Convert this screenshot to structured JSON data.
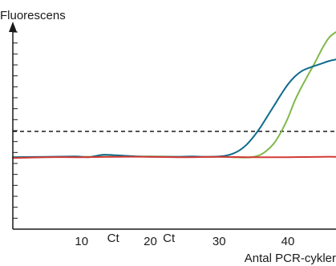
{
  "chart_data": {
    "type": "line",
    "ylabel": "Fluorescens",
    "xlabel": "Antal PCR-cykler",
    "xlim": [
      0,
      47
    ],
    "ylim": [
      -9.2,
      16
    ],
    "x_ticks": [
      10,
      20,
      30,
      40
    ],
    "y_tick_count": 19,
    "threshold": 3.3,
    "ct_labels": [
      {
        "text": "Ct",
        "x": 14.6
      },
      {
        "text": "Ct",
        "x": 22.7
      }
    ],
    "series": [
      {
        "color": "#0f6b8c",
        "x": [
          0,
          5,
          9,
          10,
          11,
          12,
          13,
          14,
          15,
          16,
          18,
          20,
          22,
          24,
          26,
          28,
          30,
          31,
          32,
          33,
          34,
          35,
          36,
          37,
          38,
          39,
          40,
          41,
          42,
          43,
          44,
          45,
          46,
          47
        ],
        "y": [
          0.0,
          0.05,
          0.1,
          0.05,
          0.0,
          0.15,
          0.3,
          0.3,
          0.25,
          0.2,
          0.1,
          0.05,
          0.05,
          0.05,
          0.1,
          0.05,
          0.1,
          0.2,
          0.45,
          0.9,
          1.6,
          2.6,
          3.8,
          5.2,
          6.6,
          8.0,
          9.3,
          10.3,
          11.0,
          11.4,
          11.7,
          12.0,
          12.3,
          12.5
        ]
      },
      {
        "color": "#7fb84a",
        "x": [
          0,
          10,
          20,
          25,
          30,
          32,
          34,
          35,
          36,
          37,
          38,
          39,
          40,
          41,
          42,
          43,
          44,
          45,
          46,
          47
        ],
        "y": [
          0.0,
          0.05,
          0.1,
          0.05,
          0.05,
          0.0,
          -0.05,
          0.05,
          0.3,
          0.9,
          1.8,
          3.2,
          5.0,
          7.2,
          9.0,
          10.6,
          12.2,
          13.9,
          15.3,
          16.0
        ]
      },
      {
        "color": "#d23a36",
        "x": [
          0,
          5,
          10,
          15,
          20,
          25,
          30,
          35,
          40,
          45,
          47
        ],
        "y": [
          -0.1,
          0.0,
          0.0,
          0.05,
          0.05,
          0.0,
          0.05,
          0.0,
          0.0,
          0.05,
          0.05
        ]
      }
    ]
  }
}
